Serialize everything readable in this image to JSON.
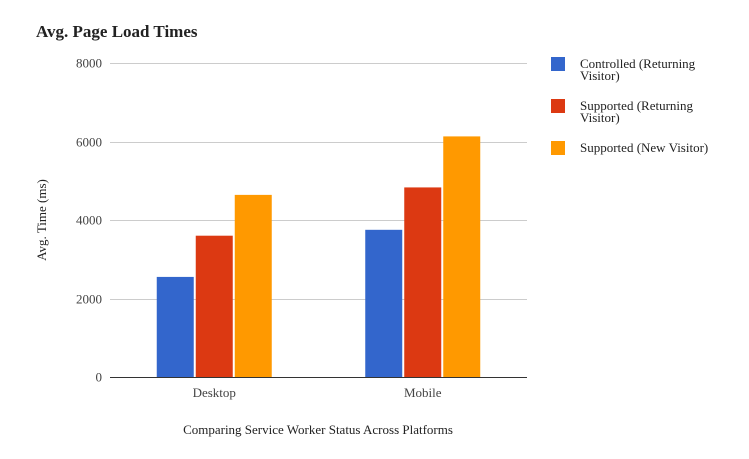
{
  "chart_data": {
    "type": "bar",
    "title": "Avg. Page Load Times",
    "xlabel": "Comparing Service Worker Status Across Platforms",
    "ylabel": "Avg. Time (ms)",
    "ylim": [
      0,
      8000
    ],
    "yticks": [
      0,
      2000,
      4000,
      6000,
      8000
    ],
    "grid": true,
    "legend_position": "right",
    "categories": [
      "Desktop",
      "Mobile"
    ],
    "series": [
      {
        "name": "Controlled (Returning Visitor)",
        "legend_lines": [
          "Controlled (Returning",
          "Visitor)"
        ],
        "color": "#3366cc",
        "values": [
          2550,
          3750
        ]
      },
      {
        "name": "Supported (Returning Visitor)",
        "legend_lines": [
          "Supported (Returning",
          "Visitor)"
        ],
        "color": "#dc3912",
        "values": [
          3600,
          4830
        ]
      },
      {
        "name": "Supported (New Visitor)",
        "legend_lines": [
          "Supported (New Visitor)"
        ],
        "color": "#ff9900",
        "values": [
          4640,
          6130
        ]
      }
    ]
  }
}
